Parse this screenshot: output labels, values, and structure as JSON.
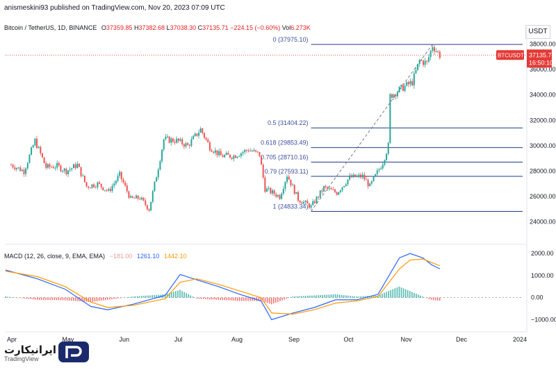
{
  "header": {
    "attribution": "anismeskini93 published on TradingView.com, Nov 20, 2023 07:09 UTC"
  },
  "legend": {
    "symbol": "Bitcoin / TetherUS, 1D, BINANCE",
    "o_label": "O",
    "o": "37359.85",
    "h_label": "H",
    "h": "37382.68",
    "l_label": "L",
    "l": "37038.30",
    "c_label": "C",
    "c": "37135.71",
    "change": "−224.15 (−0.60%)",
    "vol_label": "Vol",
    "vol": "6.273K"
  },
  "currency": "USDT",
  "price_tag": {
    "symbol": "BTCUSDT",
    "price": "37135.71",
    "countdown": "16:50:10",
    "color": "#e53935"
  },
  "macd_legend": {
    "label": "MACD (12, 26, close, 9, EMA, EMA)",
    "hist": "−181.00",
    "macd": "1261.10",
    "signal": "1442.10"
  },
  "watermark": {
    "brand": "ایرانیکارت",
    "tv": "TradingView"
  },
  "colors": {
    "up": "#26a69a",
    "down": "#ef5350",
    "fib": "#1e3a8a",
    "macd": "#2962ff",
    "signal": "#ff9800"
  },
  "chart_data": [
    {
      "type": "candlestick",
      "title": "Bitcoin / TetherUS, 1D, BINANCE",
      "ylim": [
        23000,
        38300
      ],
      "y_ticks": [
        "38000.00",
        "36000.00",
        "34000.00",
        "32000.00",
        "30000.00",
        "28000.00",
        "26000.00",
        "24000.00"
      ],
      "x_ticks": [
        "Apr",
        "May",
        "Jun",
        "Jul",
        "Aug",
        "Sep",
        "Oct",
        "Nov",
        "Dec",
        "2024"
      ],
      "fib_levels": [
        {
          "label": "0 (37975.10)",
          "value": 37975.1
        },
        {
          "label": "0.5 (31404.22)",
          "value": 31404.22
        },
        {
          "label": "0.618 (29853.49)",
          "value": 29853.49
        },
        {
          "label": "0.705 (28710.16)",
          "value": 28710.16
        },
        {
          "label": "0.79 (27593.11)",
          "value": 27593.11
        },
        {
          "label": "1 (24833.34)",
          "value": 24833.34
        }
      ],
      "close_path": [
        [
          "2023-04-01",
          28500
        ],
        [
          "2023-04-08",
          28000
        ],
        [
          "2023-04-14",
          30400
        ],
        [
          "2023-04-20",
          28300
        ],
        [
          "2023-04-26",
          28400
        ],
        [
          "2023-05-01",
          28000
        ],
        [
          "2023-05-07",
          28500
        ],
        [
          "2023-05-12",
          26800
        ],
        [
          "2023-05-18",
          27000
        ],
        [
          "2023-05-24",
          26400
        ],
        [
          "2023-05-30",
          27700
        ],
        [
          "2023-06-05",
          25800
        ],
        [
          "2023-06-10",
          25900
        ],
        [
          "2023-06-15",
          25000
        ],
        [
          "2023-06-20",
          28300
        ],
        [
          "2023-06-23",
          30500
        ],
        [
          "2023-06-30",
          30400
        ],
        [
          "2023-07-06",
          30000
        ],
        [
          "2023-07-13",
          31300
        ],
        [
          "2023-07-18",
          29900
        ],
        [
          "2023-07-24",
          29200
        ],
        [
          "2023-07-31",
          29200
        ],
        [
          "2023-08-08",
          29700
        ],
        [
          "2023-08-14",
          29300
        ],
        [
          "2023-08-17",
          26600
        ],
        [
          "2023-08-25",
          26000
        ],
        [
          "2023-08-29",
          27700
        ],
        [
          "2023-09-04",
          25800
        ],
        [
          "2023-09-11",
          25200
        ],
        [
          "2023-09-18",
          26700
        ],
        [
          "2023-09-25",
          26300
        ],
        [
          "2023-10-02",
          27500
        ],
        [
          "2023-10-09",
          27600
        ],
        [
          "2023-10-13",
          26800
        ],
        [
          "2023-10-20",
          28700
        ],
        [
          "2023-10-23",
          30000
        ],
        [
          "2023-10-24",
          33900
        ],
        [
          "2023-10-30",
          34500
        ],
        [
          "2023-11-05",
          35000
        ],
        [
          "2023-11-09",
          36700
        ],
        [
          "2023-11-13",
          36500
        ],
        [
          "2023-11-16",
          37900
        ],
        [
          "2023-11-19",
          37300
        ],
        [
          "2023-11-20",
          37135
        ]
      ]
    },
    {
      "type": "line",
      "title": "MACD (12, 26, close, 9, EMA, EMA)",
      "ylim": [
        -1300,
        2100
      ],
      "y_ticks": [
        "2000.00",
        "1000.00",
        "0.00",
        "−1000.00"
      ],
      "series": [
        {
          "name": "MACD",
          "values": [
            [
              0,
              1250
            ],
            [
              15,
              850
            ],
            [
              28,
              380
            ],
            [
              40,
              -400
            ],
            [
              48,
              -550
            ],
            [
              60,
              -300
            ],
            [
              75,
              100
            ],
            [
              82,
              1050
            ],
            [
              90,
              800
            ],
            [
              100,
              500
            ],
            [
              110,
              150
            ],
            [
              120,
              -150
            ],
            [
              125,
              -1000
            ],
            [
              135,
              -700
            ],
            [
              145,
              -450
            ],
            [
              155,
              -100
            ],
            [
              165,
              -100
            ],
            [
              175,
              150
            ],
            [
              185,
              1800
            ],
            [
              190,
              2000
            ],
            [
              196,
              1800
            ],
            [
              200,
              1500
            ],
            [
              204,
              1300
            ]
          ]
        },
        {
          "name": "Signal",
          "values": [
            [
              0,
              1200
            ],
            [
              15,
              950
            ],
            [
              28,
              500
            ],
            [
              40,
              -200
            ],
            [
              48,
              -450
            ],
            [
              60,
              -350
            ],
            [
              75,
              -50
            ],
            [
              82,
              700
            ],
            [
              90,
              850
            ],
            [
              100,
              600
            ],
            [
              110,
              300
            ],
            [
              120,
              0
            ],
            [
              125,
              -700
            ],
            [
              135,
              -750
            ],
            [
              145,
              -550
            ],
            [
              155,
              -250
            ],
            [
              165,
              -150
            ],
            [
              175,
              50
            ],
            [
              185,
              1300
            ],
            [
              190,
              1700
            ],
            [
              196,
              1750
            ],
            [
              200,
              1600
            ],
            [
              204,
              1440
            ]
          ]
        }
      ]
    }
  ]
}
